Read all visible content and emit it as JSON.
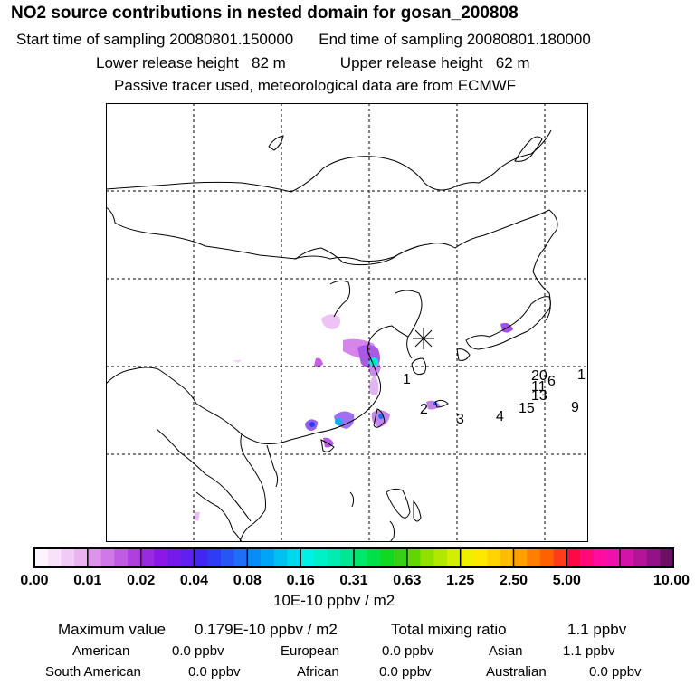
{
  "header": {
    "title": "NO2 source contributions in nested domain for gosan_200808",
    "start_label": "Start time of sampling",
    "start_value": "20080801.150000",
    "end_label": "End time of sampling",
    "end_value": "20080801.180000",
    "lower_label": "Lower release height",
    "lower_value": "82 m",
    "upper_label": "Upper release height",
    "upper_value": "62 m",
    "note": "Passive tracer used, meteorological data are from ECMWF"
  },
  "map": {
    "receptor_marker": "asterisk",
    "station_labels": [
      "1",
      "2",
      "3",
      "4",
      "1",
      "20",
      "6",
      "15",
      "9"
    ]
  },
  "colorbar": {
    "tick_labels": [
      "0.00",
      "0.01",
      "0.02",
      "0.04",
      "0.08",
      "0.16",
      "0.31",
      "0.63",
      "1.25",
      "2.50",
      "5.00",
      "10.00"
    ],
    "units": "10E-10 ppbv / m2",
    "colors": [
      [
        "#fdf5fe",
        "#f8e2fa",
        "#f1cbf5",
        "#e9b3f0"
      ],
      [
        "#dd93ea",
        "#d078e6",
        "#c05ce3",
        "#b03fe0"
      ],
      [
        "#9a2ae0",
        "#8a18e6",
        "#761aeb",
        "#6020f0"
      ],
      [
        "#4426f2",
        "#2e3cf4",
        "#2656f4",
        "#1e6ef6"
      ],
      [
        "#0a8cf6",
        "#00a6f4",
        "#00c0f0",
        "#00d8ee"
      ],
      [
        "#00f0e8",
        "#00f0c8",
        "#00ecb0",
        "#00e894"
      ],
      [
        "#00e86c",
        "#00e048",
        "#12d820",
        "#38d014"
      ],
      [
        "#60d800",
        "#90e000",
        "#b0e800",
        "#d0f000"
      ],
      [
        "#eef000",
        "#ffe800",
        "#ffd400",
        "#ffbc00"
      ],
      [
        "#ffa000",
        "#ff8000",
        "#ff6000",
        "#ff3c1c"
      ],
      [
        "#ff0846",
        "#ff0a78",
        "#ff0ca0",
        "#f010b0"
      ],
      [
        "#d414a6",
        "#b41498",
        "#941288",
        "#6c1066"
      ]
    ]
  },
  "summary": {
    "max_label": "Maximum value",
    "max_value": "0.179E-10 ppbv / m2",
    "total_label": "Total mixing ratio",
    "total_value": "1.1 ppbv",
    "regions": [
      {
        "name": "American",
        "value": "0.0 ppbv"
      },
      {
        "name": "European",
        "value": "0.0 ppbv"
      },
      {
        "name": "Asian",
        "value": "1.1 ppbv"
      },
      {
        "name": "South American",
        "value": "0.0 ppbv"
      },
      {
        "name": "African",
        "value": "0.0 ppbv"
      },
      {
        "name": "Australian",
        "value": "0.0 ppbv"
      }
    ]
  }
}
